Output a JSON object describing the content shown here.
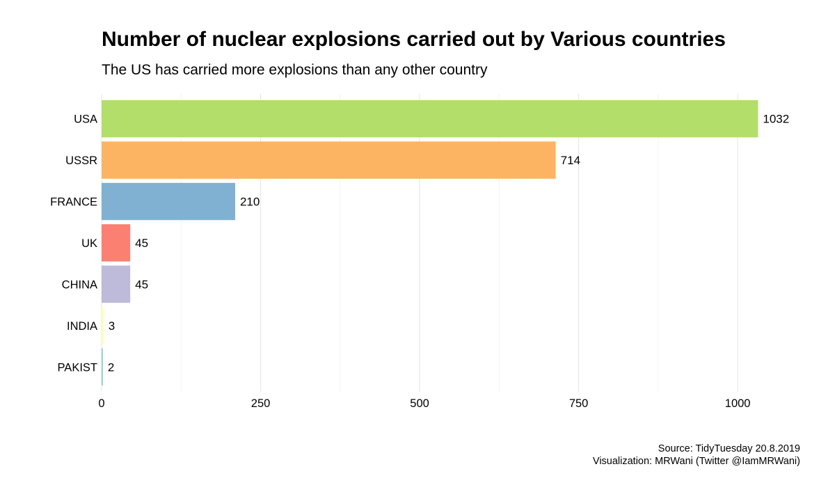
{
  "chart_data": {
    "type": "bar",
    "orientation": "horizontal",
    "title": "Number of nuclear explosions carried out by Various countries",
    "subtitle": "The US has carried more explosions than any other country",
    "categories": [
      "USA",
      "USSR",
      "FRANCE",
      "UK",
      "CHINA",
      "INDIA",
      "PAKIST"
    ],
    "values": [
      1032,
      714,
      210,
      45,
      45,
      3,
      2
    ],
    "data_labels": [
      "1032",
      "714",
      "210",
      "45",
      "45",
      "3",
      "2"
    ],
    "colors": [
      "#b3de69",
      "#fdb462",
      "#80b1d3",
      "#fb8072",
      "#bebada",
      "#ffffb3",
      "#8dd3c7"
    ],
    "x_ticks": [
      0,
      250,
      500,
      750,
      1000
    ],
    "x_tick_labels": [
      "0",
      "250",
      "500",
      "750",
      "1000"
    ],
    "xlim": [
      0,
      1083
    ],
    "grid": true,
    "legend": "none",
    "caption": [
      "Source: TidyTuesday 20.8.2019",
      "Visualization: MRWani (Twitter @IamMRWani)"
    ]
  }
}
